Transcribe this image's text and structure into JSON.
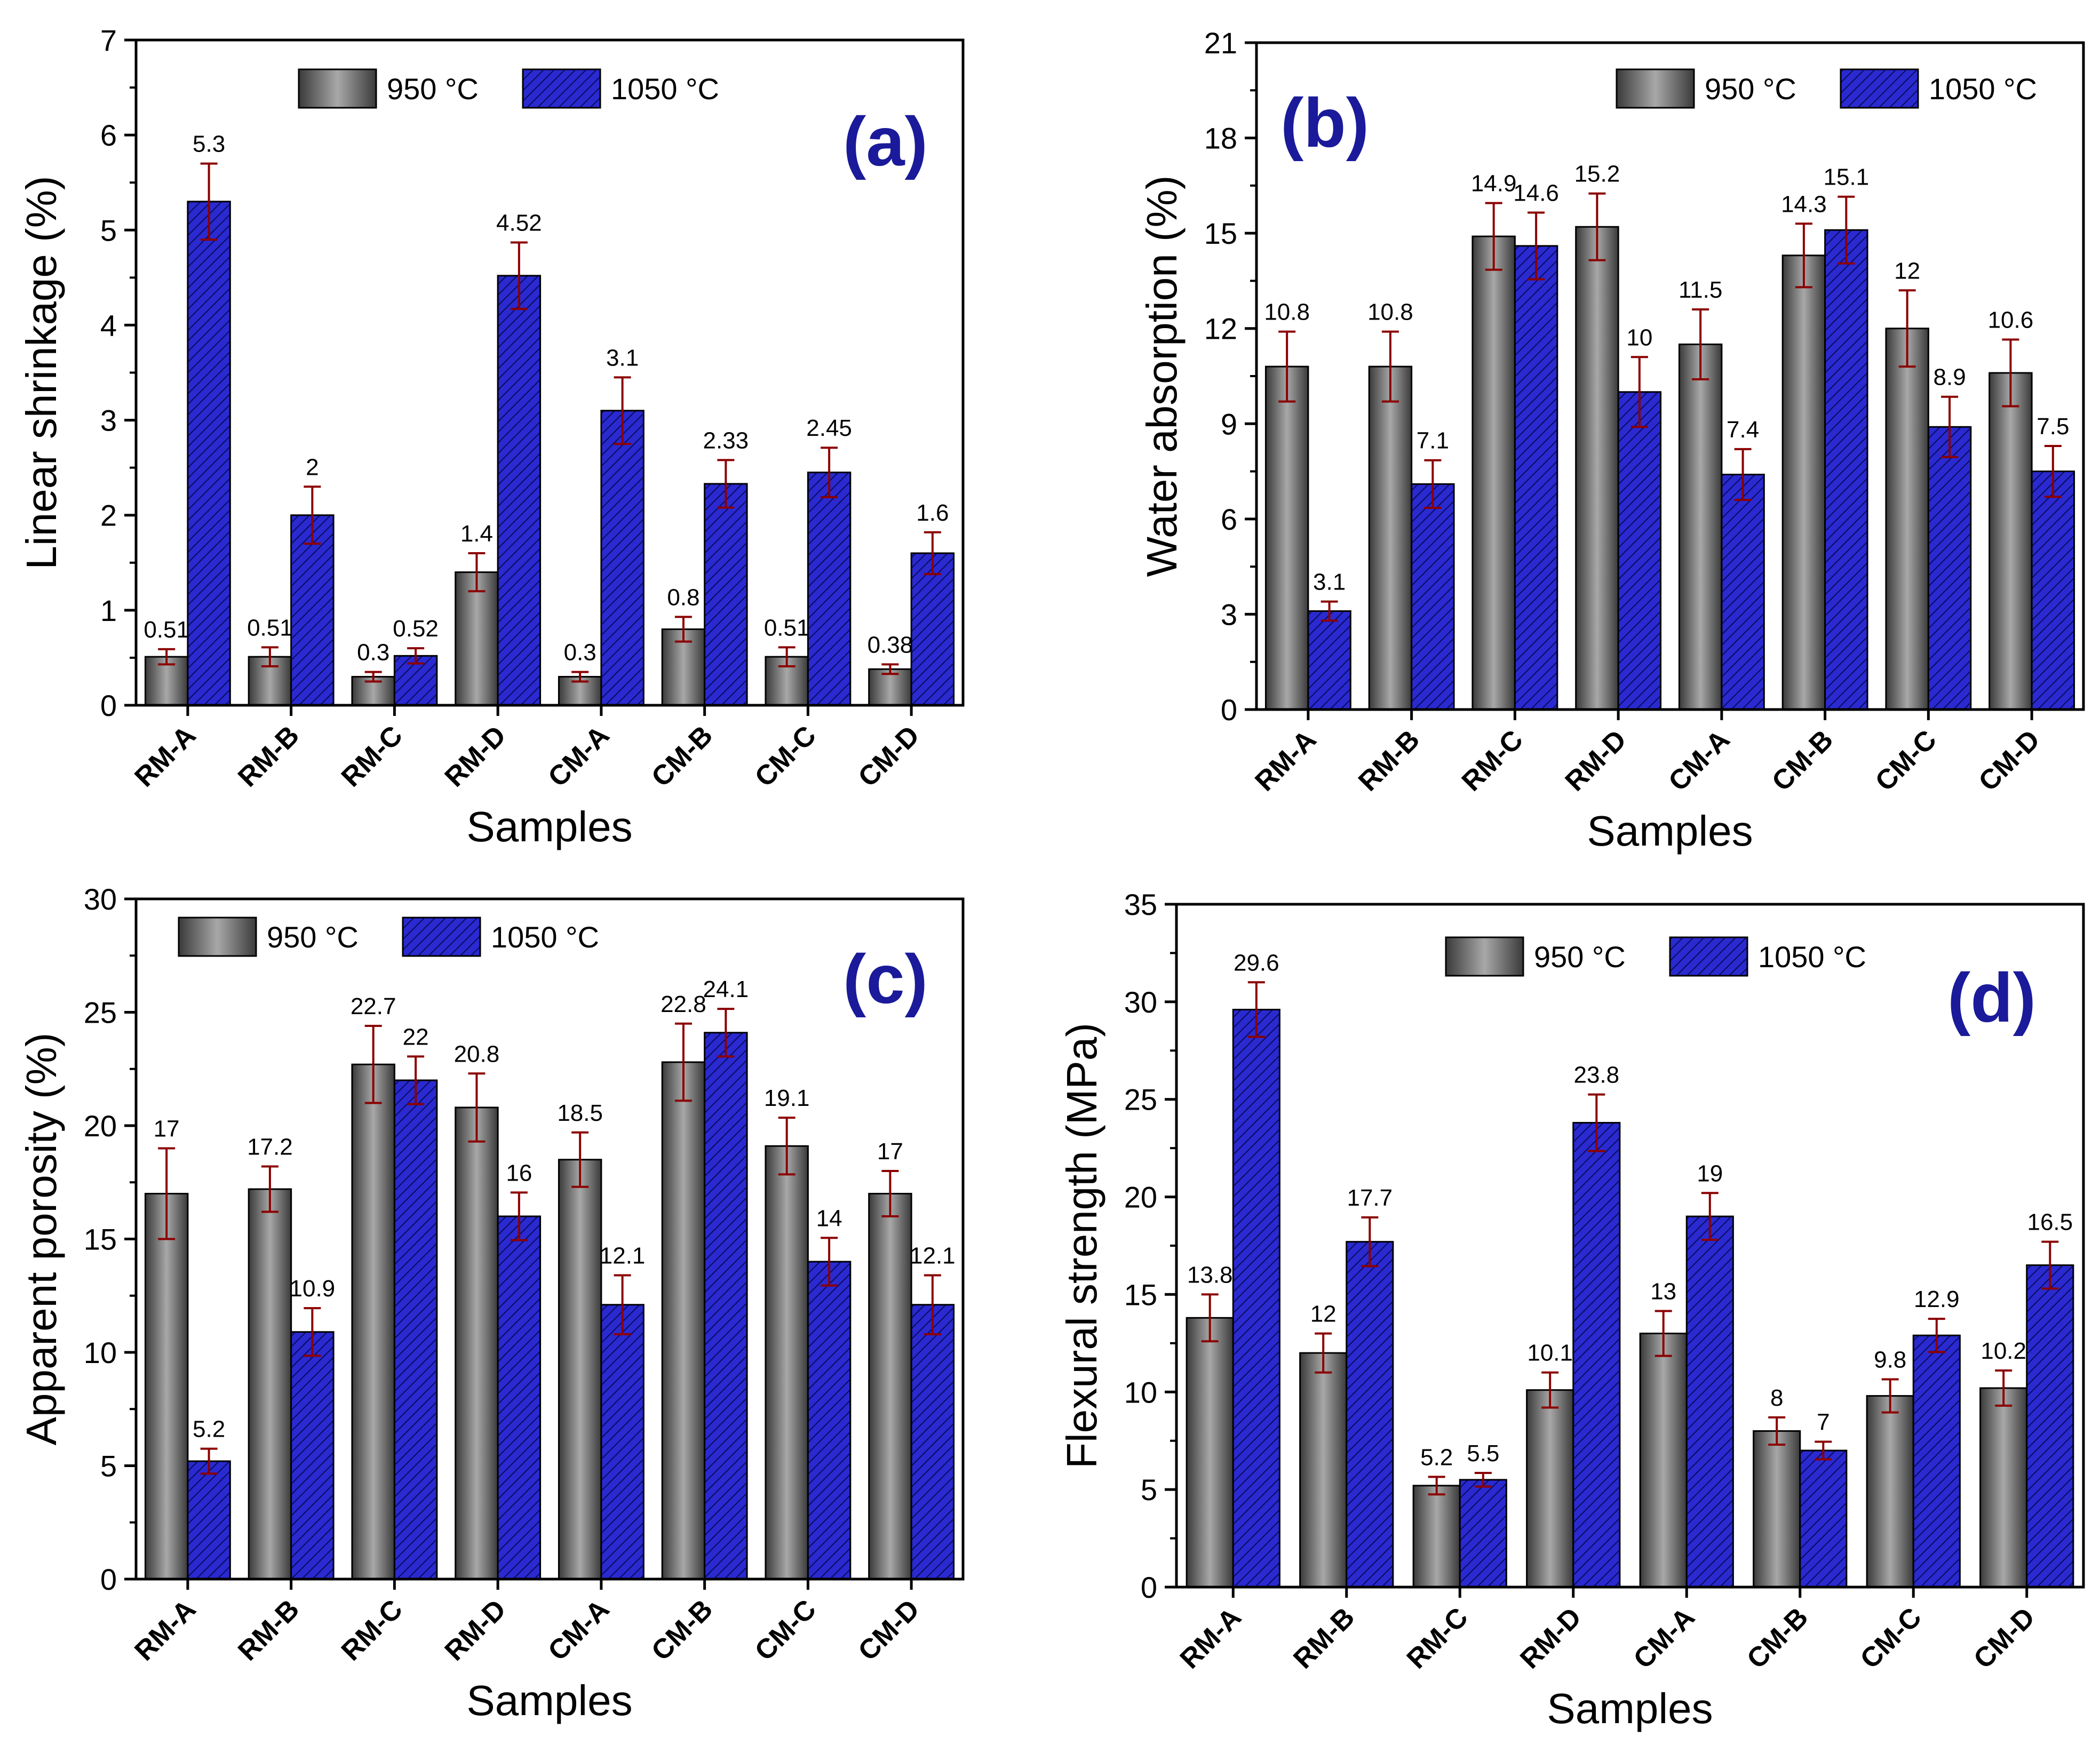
{
  "chart_data": [
    {
      "panel": "(a)",
      "type": "bar",
      "categories": [
        "RM-A",
        "RM-B",
        "RM-C",
        "RM-D",
        "CM-A",
        "CM-B",
        "CM-C",
        "CM-D"
      ],
      "series": [
        {
          "name": "950 °C",
          "color": "#6e6e6e",
          "values": [
            0.51,
            0.51,
            0.3,
            1.4,
            0.3,
            0.8,
            0.51,
            0.38
          ],
          "labels": [
            "0.51",
            "0.51",
            "0.3",
            "1.4",
            "0.3",
            "0.8",
            "0.51",
            "0.38"
          ],
          "errors": [
            0.08,
            0.1,
            0.05,
            0.2,
            0.05,
            0.13,
            0.1,
            0.05
          ]
        },
        {
          "name": "1050 °C",
          "color": "#2a2ad0",
          "values": [
            5.3,
            2.0,
            0.52,
            4.52,
            3.1,
            2.33,
            2.45,
            1.6
          ],
          "labels": [
            "5.3",
            "2",
            "0.52",
            "4.52",
            "3.1",
            "2.33",
            "2.45",
            "1.6"
          ],
          "errors": [
            0.4,
            0.3,
            0.08,
            0.35,
            0.35,
            0.25,
            0.26,
            0.22
          ]
        }
      ],
      "xlabel": "Samples",
      "ylabel": "Linear shrinkage (%)",
      "ylim": [
        0,
        7
      ],
      "yticks": [
        "0",
        "1",
        "2",
        "3",
        "4",
        "5",
        "6",
        "7"
      ],
      "legend": "top-center"
    },
    {
      "panel": "(b)",
      "type": "bar",
      "categories": [
        "RM-A",
        "RM-B",
        "RM-C",
        "RM-D",
        "CM-A",
        "CM-B",
        "CM-C",
        "CM-D"
      ],
      "series": [
        {
          "name": "950 °C",
          "color": "#6e6e6e",
          "values": [
            10.8,
            10.8,
            14.9,
            15.2,
            11.5,
            14.3,
            12.0,
            10.6
          ],
          "labels": [
            "10.8",
            "10.8",
            "14.9",
            "15.2",
            "11.5",
            "14.3",
            "12",
            "10.6"
          ],
          "errors": [
            1.1,
            1.1,
            1.05,
            1.05,
            1.1,
            1.0,
            1.2,
            1.05
          ]
        },
        {
          "name": "1050 °C",
          "color": "#2a2ad0",
          "values": [
            3.1,
            7.1,
            14.6,
            10.0,
            7.4,
            15.1,
            8.9,
            7.5
          ],
          "labels": [
            "3.1",
            "7.1",
            "14.6",
            "10",
            "7.4",
            "15.1",
            "8.9",
            "7.5"
          ],
          "errors": [
            0.3,
            0.75,
            1.05,
            1.1,
            0.8,
            1.05,
            0.95,
            0.8
          ]
        }
      ],
      "xlabel": "Samples",
      "ylabel": "Water absorption (%)",
      "ylim": [
        0,
        21
      ],
      "yticks": [
        "0",
        "3",
        "6",
        "9",
        "12",
        "15",
        "18",
        "21"
      ],
      "legend": "top-right"
    },
    {
      "panel": "(c)",
      "type": "bar",
      "categories": [
        "RM-A",
        "RM-B",
        "RM-C",
        "RM-D",
        "CM-A",
        "CM-B",
        "CM-C",
        "CM-D"
      ],
      "series": [
        {
          "name": "950 °C",
          "color": "#6e6e6e",
          "values": [
            17,
            17.2,
            22.7,
            20.8,
            18.5,
            22.8,
            19.1,
            17
          ],
          "labels": [
            "17",
            "17.2",
            "22.7",
            "20.8",
            "18.5",
            "22.8",
            "19.1",
            "17"
          ],
          "errors": [
            2.0,
            1.0,
            1.7,
            1.5,
            1.2,
            1.7,
            1.25,
            1.0
          ]
        },
        {
          "name": "1050 °C",
          "color": "#2a2ad0",
          "values": [
            5.2,
            10.9,
            22,
            16,
            12.1,
            24.1,
            14,
            12.1
          ],
          "labels": [
            "5.2",
            "10.9",
            "22",
            "16",
            "12.1",
            "24.1",
            "14",
            "12.1"
          ],
          "errors": [
            0.55,
            1.05,
            1.05,
            1.05,
            1.3,
            1.05,
            1.05,
            1.3
          ]
        }
      ],
      "xlabel": "Samples",
      "ylabel": "Apparent porosity (%)",
      "ylim": [
        0,
        30
      ],
      "yticks": [
        "0",
        "5",
        "10",
        "15",
        "20",
        "25",
        "30"
      ],
      "legend": "top-left"
    },
    {
      "panel": "(d)",
      "type": "bar",
      "categories": [
        "RM-A",
        "RM-B",
        "RM-C",
        "RM-D",
        "CM-A",
        "CM-B",
        "CM-C",
        "CM-D"
      ],
      "series": [
        {
          "name": "950 °C",
          "color": "#6e6e6e",
          "values": [
            13.8,
            12,
            5.2,
            10.1,
            13,
            8,
            9.8,
            10.2
          ],
          "labels": [
            "13.8",
            "12",
            "5.2",
            "10.1",
            "13",
            "8",
            "9.8",
            "10.2"
          ],
          "errors": [
            1.2,
            1.0,
            0.45,
            0.9,
            1.15,
            0.7,
            0.85,
            0.9
          ]
        },
        {
          "name": "1050 °C",
          "color": "#2a2ad0",
          "values": [
            29.6,
            17.7,
            5.5,
            23.8,
            19,
            7,
            12.9,
            16.5
          ],
          "labels": [
            "29.6",
            "17.7",
            "5.5",
            "23.8",
            "19",
            "7",
            "12.9",
            "16.5"
          ],
          "errors": [
            1.4,
            1.25,
            0.35,
            1.45,
            1.2,
            0.45,
            0.85,
            1.2
          ]
        }
      ],
      "xlabel": "Samples",
      "ylabel": "Flexural strength (MPa)",
      "ylim": [
        0,
        35
      ],
      "yticks": [
        "0",
        "5",
        "10",
        "15",
        "20",
        "25",
        "30",
        "35"
      ],
      "legend": "top-center"
    }
  ]
}
